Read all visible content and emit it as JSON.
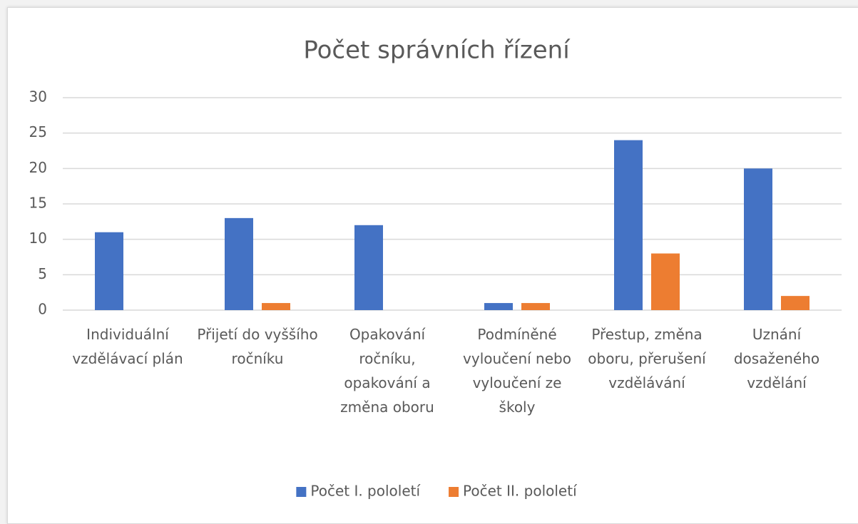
{
  "chart_data": {
    "type": "bar",
    "title": "Počet správních řízení",
    "categories": [
      "Individuální vzdělávací plán",
      "Přijetí do vyššího ročníku",
      "Opakování ročníku, opakování a změna oboru",
      "Podmíněné vyloučení nebo vyloučení ze školy",
      "Přestup, změna oboru, přerušení vzdělávání",
      "Uznání dosaženého vzdělání"
    ],
    "series": [
      {
        "name": "Počet I. pololetí",
        "color": "#4472c4",
        "values": [
          11,
          13,
          12,
          1,
          24,
          20
        ]
      },
      {
        "name": "Počet II. pololetí",
        "color": "#ed7d31",
        "values": [
          0,
          1,
          0,
          1,
          8,
          2
        ]
      }
    ],
    "ylim": [
      0,
      30
    ],
    "yticks": [
      0,
      5,
      10,
      15,
      20,
      25,
      30
    ],
    "grid": true,
    "legend": "bottom"
  }
}
